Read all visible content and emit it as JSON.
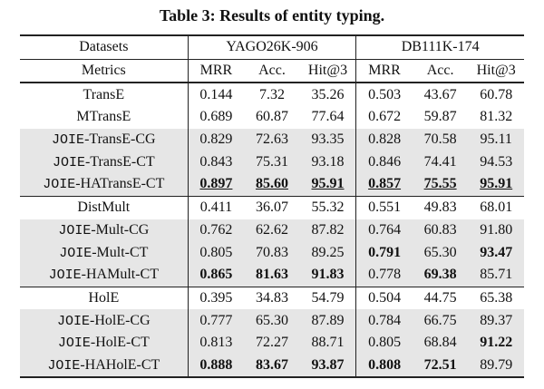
{
  "title": "Table 3: Results of entity typing.",
  "table": {
    "header": {
      "label": "Datasets",
      "datasets": [
        "YAGO26K-906",
        "DB111K-174"
      ]
    },
    "metrics": {
      "label": "Metrics",
      "names": [
        "MRR",
        "Acc.",
        "Hit@3",
        "MRR",
        "Acc.",
        "Hit@3"
      ]
    },
    "groups": [
      [
        {
          "name": [
            "TransE"
          ],
          "values": [
            "0.144",
            "7.32",
            "35.26",
            "0.503",
            "43.67",
            "60.78"
          ],
          "shaded": false,
          "bold": [],
          "underline": false
        },
        {
          "name": [
            "MTransE"
          ],
          "values": [
            "0.689",
            "60.87",
            "77.64",
            "0.672",
            "59.87",
            "81.32"
          ],
          "shaded": false,
          "bold": [],
          "underline": false
        },
        {
          "name": [
            "JOIE",
            "-TransE-CG"
          ],
          "values": [
            "0.829",
            "72.63",
            "93.35",
            "0.828",
            "70.58",
            "95.11"
          ],
          "shaded": true,
          "bold": [],
          "underline": false
        },
        {
          "name": [
            "JOIE",
            "-TransE-CT"
          ],
          "values": [
            "0.843",
            "75.31",
            "93.18",
            "0.846",
            "74.41",
            "94.53"
          ],
          "shaded": true,
          "bold": [],
          "underline": false
        },
        {
          "name": [
            "JOIE",
            "-HATransE-CT"
          ],
          "values": [
            "0.897",
            "85.60",
            "95.91",
            "0.857",
            "75.55",
            "95.91"
          ],
          "shaded": true,
          "bold": [
            0,
            1,
            2,
            3,
            4,
            5
          ],
          "underline": true
        }
      ],
      [
        {
          "name": [
            "DistMult"
          ],
          "values": [
            "0.411",
            "36.07",
            "55.32",
            "0.551",
            "49.83",
            "68.01"
          ],
          "shaded": false,
          "bold": [],
          "underline": false
        },
        {
          "name": [
            "JOIE",
            "-Mult-CG"
          ],
          "values": [
            "0.762",
            "62.62",
            "87.82",
            "0.764",
            "60.83",
            "91.80"
          ],
          "shaded": true,
          "bold": [],
          "underline": false
        },
        {
          "name": [
            "JOIE",
            "-Mult-CT"
          ],
          "values": [
            "0.805",
            "70.83",
            "89.25",
            "0.791",
            "65.30",
            "93.47"
          ],
          "shaded": true,
          "bold": [
            3,
            5
          ],
          "underline": false
        },
        {
          "name": [
            "JOIE",
            "-HAMult-CT"
          ],
          "values": [
            "0.865",
            "81.63",
            "91.83",
            "0.778",
            "69.38",
            "85.71"
          ],
          "shaded": true,
          "bold": [
            0,
            1,
            2,
            4
          ],
          "underline": false
        }
      ],
      [
        {
          "name": [
            "HolE"
          ],
          "values": [
            "0.395",
            "34.83",
            "54.79",
            "0.504",
            "44.75",
            "65.38"
          ],
          "shaded": false,
          "bold": [],
          "underline": false
        },
        {
          "name": [
            "JOIE",
            "-HolE-CG"
          ],
          "values": [
            "0.777",
            "65.30",
            "87.89",
            "0.784",
            "66.75",
            "89.37"
          ],
          "shaded": true,
          "bold": [],
          "underline": false
        },
        {
          "name": [
            "JOIE",
            "-HolE-CT"
          ],
          "values": [
            "0.813",
            "72.27",
            "88.71",
            "0.805",
            "68.84",
            "91.22"
          ],
          "shaded": true,
          "bold": [
            5
          ],
          "underline": false
        },
        {
          "name": [
            "JOIE",
            "-HAHolE-CT"
          ],
          "values": [
            "0.888",
            "83.67",
            "93.87",
            "0.808",
            "72.51",
            "89.79"
          ],
          "shaded": true,
          "bold": [
            0,
            1,
            2,
            3,
            4
          ],
          "underline": false
        }
      ]
    ]
  }
}
